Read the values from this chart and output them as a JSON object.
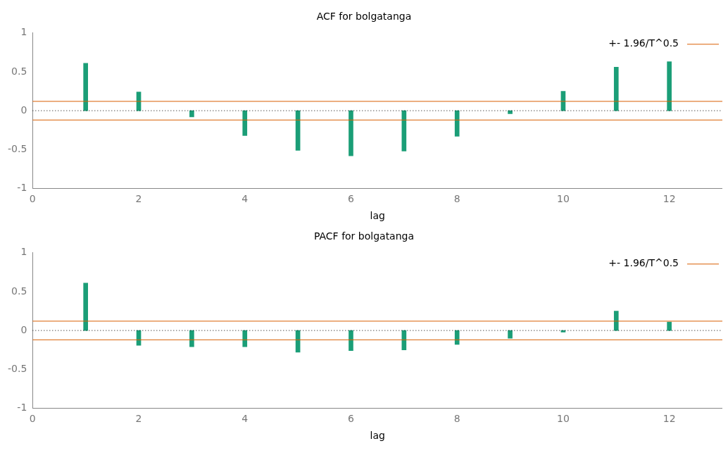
{
  "chart_data": [
    {
      "type": "bar",
      "title": "ACF for bolgatanga",
      "xlabel": "lag",
      "x": [
        1,
        2,
        3,
        4,
        5,
        6,
        7,
        8,
        9,
        10,
        11,
        12
      ],
      "series": [
        {
          "color": "#1b9e77",
          "values": [
            0.61,
            0.24,
            -0.08,
            -0.32,
            -0.51,
            -0.58,
            -0.52,
            -0.33,
            -0.04,
            0.25,
            0.56,
            0.63
          ]
        }
      ],
      "xlim": [
        0,
        13
      ],
      "xticks": [
        0,
        2,
        4,
        6,
        8,
        10,
        12
      ],
      "ylim": [
        -1,
        1
      ],
      "yticks": [
        -1,
        -0.5,
        0,
        0.5,
        1
      ],
      "grid": false,
      "legend": "top right",
      "ref_lines": [
        {
          "axis": "y",
          "value": 0.12,
          "label": "+- 1.96/T^0.5",
          "color": "#d95f02"
        },
        {
          "axis": "y",
          "value": -0.12,
          "color": "#d95f02"
        },
        {
          "axis": "y",
          "value": 0,
          "color": "#000000",
          "line_style": "dotted"
        }
      ]
    },
    {
      "type": "bar",
      "title": "PACF for bolgatanga",
      "xlabel": "lag",
      "x": [
        1,
        2,
        3,
        4,
        5,
        6,
        7,
        8,
        9,
        10,
        11,
        12
      ],
      "series": [
        {
          "color": "#1b9e77",
          "values": [
            0.61,
            -0.19,
            -0.21,
            -0.21,
            -0.28,
            -0.26,
            -0.25,
            -0.18,
            -0.1,
            -0.02,
            0.25,
            0.11
          ]
        }
      ],
      "xlim": [
        0,
        13
      ],
      "xticks": [
        0,
        2,
        4,
        6,
        8,
        10,
        12
      ],
      "ylim": [
        -1,
        1
      ],
      "yticks": [
        -1,
        -0.5,
        0,
        0.5,
        1
      ],
      "grid": false,
      "legend": "top right",
      "ref_lines": [
        {
          "axis": "y",
          "value": 0.12,
          "label": "+- 1.96/T^0.5",
          "color": "#d95f02"
        },
        {
          "axis": "y",
          "value": -0.12,
          "color": "#d95f02"
        },
        {
          "axis": "y",
          "value": 0,
          "color": "#000000",
          "line_style": "dotted"
        }
      ]
    }
  ]
}
